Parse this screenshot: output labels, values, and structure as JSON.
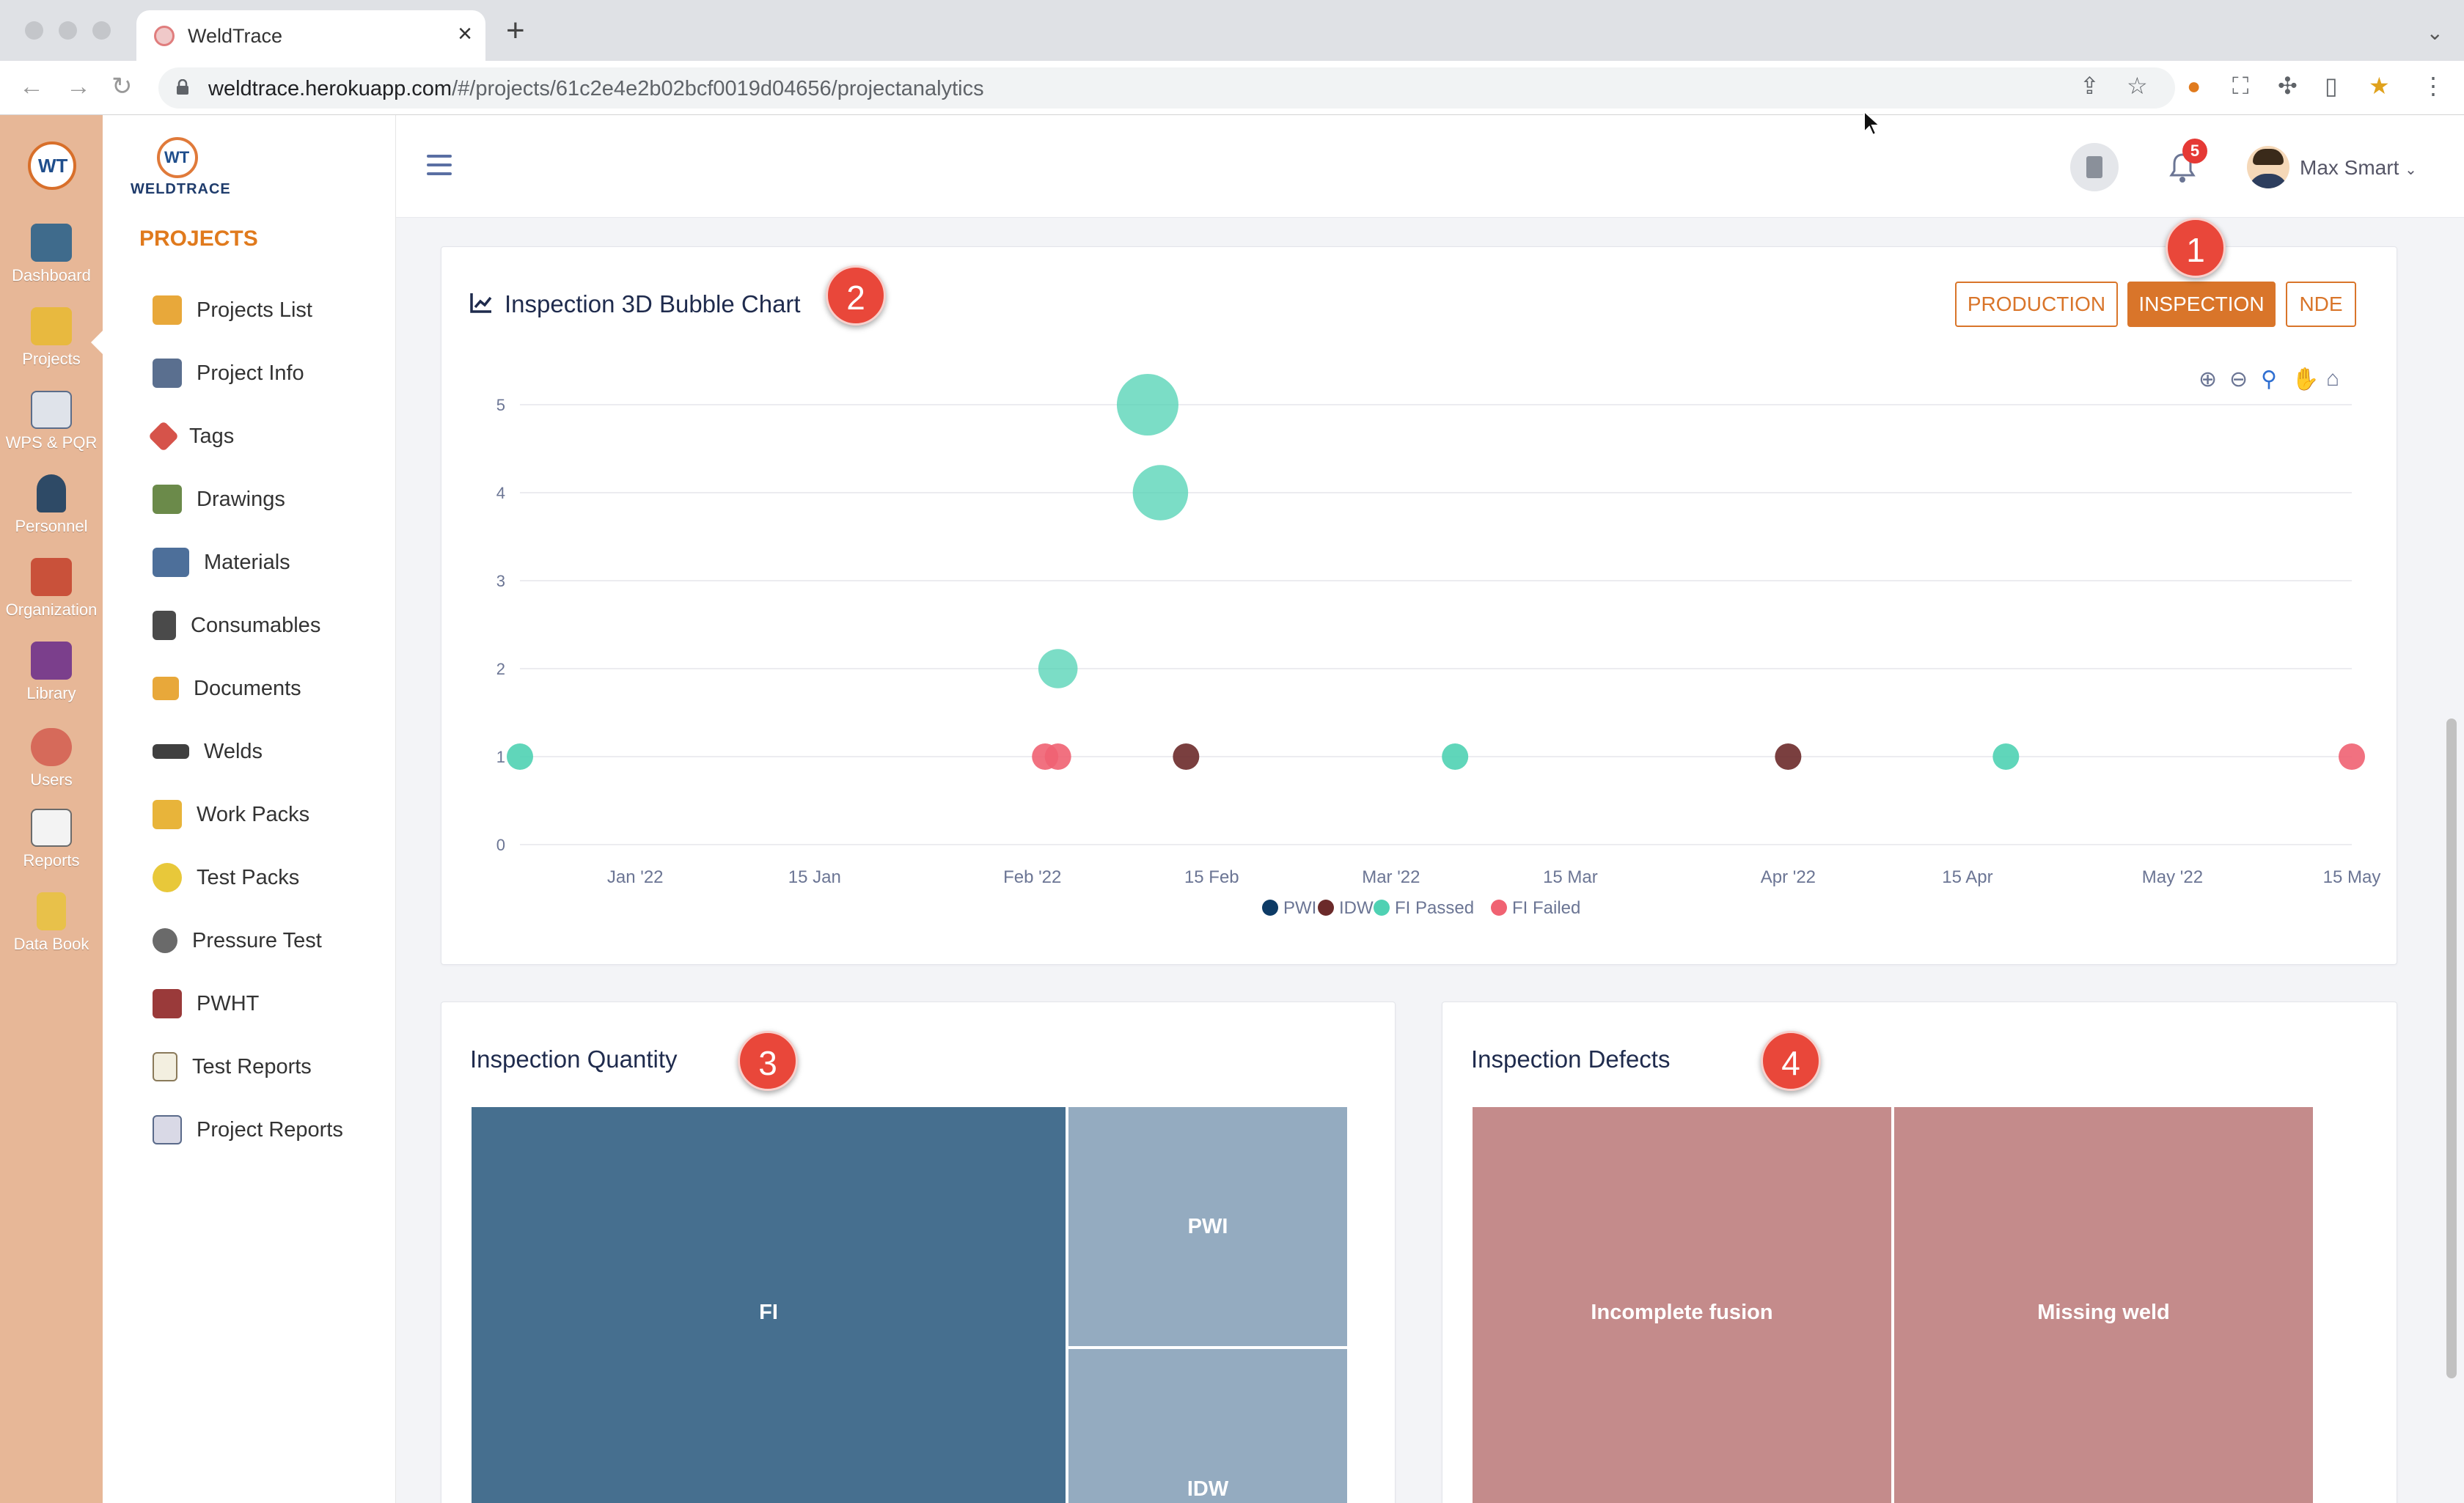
{
  "browser": {
    "tab_title": "WeldTrace",
    "url_host": "weldtrace.herokuapp.com",
    "url_path": "/#/projects/61c2e4e2b02bcf0019d04656/projectanalytics"
  },
  "rail": {
    "items": [
      {
        "label": "Dashboard"
      },
      {
        "label": "Projects"
      },
      {
        "label": "WPS & PQR"
      },
      {
        "label": "Personnel"
      },
      {
        "label": "Organization"
      },
      {
        "label": "Library"
      },
      {
        "label": "Users"
      },
      {
        "label": "Reports"
      },
      {
        "label": "Data Book"
      }
    ]
  },
  "sidebar": {
    "logo_text": "WELDTRACE",
    "heading": "PROJECTS",
    "items": [
      {
        "label": "Projects List"
      },
      {
        "label": "Project Info"
      },
      {
        "label": "Tags"
      },
      {
        "label": "Drawings"
      },
      {
        "label": "Materials"
      },
      {
        "label": "Consumables"
      },
      {
        "label": "Documents"
      },
      {
        "label": "Welds"
      },
      {
        "label": "Work Packs"
      },
      {
        "label": "Test Packs"
      },
      {
        "label": "Pressure Test"
      },
      {
        "label": "PWHT"
      },
      {
        "label": "Test Reports"
      },
      {
        "label": "Project Reports"
      }
    ]
  },
  "header": {
    "notification_count": "5",
    "user_name": "Max Smart"
  },
  "bubble_card": {
    "title": "Inspection 3D Bubble Chart",
    "buttons": {
      "production": "PRODUCTION",
      "inspection": "INSPECTION",
      "nde": "NDE"
    }
  },
  "markers": {
    "m1": "1",
    "m2": "2",
    "m3": "3",
    "m4": "4"
  },
  "chart_data": [
    {
      "type": "scatter",
      "title": "Inspection 3D Bubble Chart",
      "ylim": [
        0,
        5
      ],
      "yticks": [
        "0",
        "1",
        "2",
        "3",
        "4",
        "5"
      ],
      "xlim": [
        "2021-12-23",
        "2022-05-15"
      ],
      "xticks": [
        {
          "label": "Jan '22",
          "date": "2022-01-01"
        },
        {
          "label": "15 Jan",
          "date": "2022-01-15"
        },
        {
          "label": "Feb '22",
          "date": "2022-02-01"
        },
        {
          "label": "15 Feb",
          "date": "2022-02-15"
        },
        {
          "label": "Mar '22",
          "date": "2022-03-01"
        },
        {
          "label": "15 Mar",
          "date": "2022-03-15"
        },
        {
          "label": "Apr '22",
          "date": "2022-04-01"
        },
        {
          "label": "15 Apr",
          "date": "2022-04-15"
        },
        {
          "label": "May '22",
          "date": "2022-05-01"
        },
        {
          "label": "15 May",
          "date": "2022-05-15"
        }
      ],
      "legend_position": "bottom-center",
      "grid": true,
      "series": [
        {
          "name": "PWI",
          "color": "#0d3b66",
          "points": []
        },
        {
          "name": "IDW",
          "color": "#6b2a2a",
          "points": [
            {
              "x": "2022-02-13",
              "y": 1,
              "z": 1
            },
            {
              "x": "2022-04-01",
              "y": 1,
              "z": 1
            }
          ]
        },
        {
          "name": "FI Passed",
          "color": "#4fd1b3",
          "points": [
            {
              "x": "2021-12-23",
              "y": 1,
              "z": 1
            },
            {
              "x": "2022-02-03",
              "y": 2,
              "z": 3
            },
            {
              "x": "2022-02-10",
              "y": 5,
              "z": 9
            },
            {
              "x": "2022-02-11",
              "y": 4,
              "z": 7
            },
            {
              "x": "2022-03-06",
              "y": 1,
              "z": 1
            },
            {
              "x": "2022-04-18",
              "y": 1,
              "z": 1
            }
          ]
        },
        {
          "name": "FI Failed",
          "color": "#f06272",
          "points": [
            {
              "x": "2022-02-02",
              "y": 1,
              "z": 1
            },
            {
              "x": "2022-02-03",
              "y": 1,
              "z": 1
            },
            {
              "x": "2022-05-15",
              "y": 1,
              "z": 1
            }
          ]
        }
      ]
    },
    {
      "type": "treemap",
      "title": "Inspection Quantity",
      "items": [
        {
          "label": "FI",
          "value": 10,
          "color": "#466f8f"
        },
        {
          "label": "PWI",
          "value": 2.5,
          "color": "#94abc0"
        },
        {
          "label": "IDW",
          "value": 2.5,
          "color": "#94abc0"
        }
      ]
    },
    {
      "type": "treemap",
      "title": "Inspection Defects",
      "items": [
        {
          "label": "Incomplete fusion",
          "value": 1,
          "color": "#c48b8b"
        },
        {
          "label": "Missing weld",
          "value": 1,
          "color": "#c48b8b"
        }
      ]
    }
  ]
}
